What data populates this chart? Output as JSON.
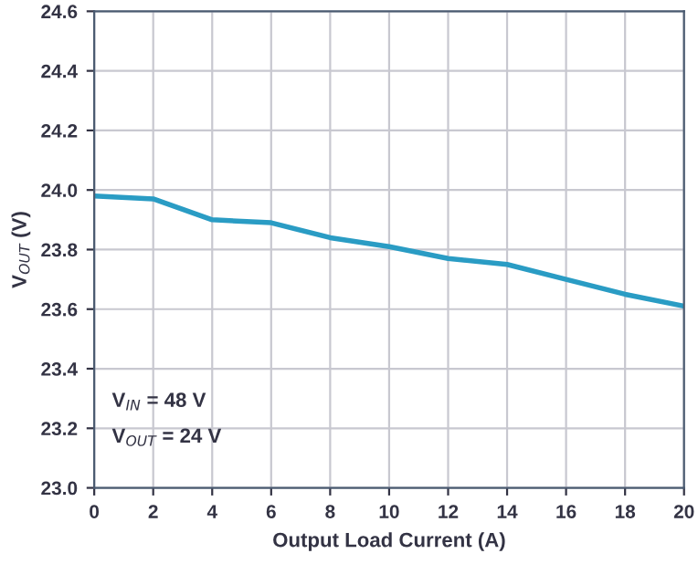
{
  "chart_data": {
    "type": "line",
    "xlabel": "Output Load Current (A)",
    "ylabel": "V$_{OUT}$ (V)",
    "x": [
      0,
      2,
      4,
      6,
      8,
      10,
      12,
      14,
      16,
      18,
      20
    ],
    "series": [
      {
        "color": "#2a9cc4",
        "values": [
          23.98,
          23.97,
          23.9,
          23.89,
          23.84,
          23.81,
          23.77,
          23.75,
          23.7,
          23.65,
          23.61
        ]
      }
    ],
    "xlim": [
      0,
      20
    ],
    "xticks": [
      0,
      2,
      4,
      6,
      8,
      10,
      12,
      14,
      16,
      18,
      20
    ],
    "ylim": [
      23.0,
      24.6
    ],
    "yticks": [
      {
        "value": 23.0,
        "label": "23.0"
      },
      23.2,
      23.4,
      23.6,
      23.8,
      {
        "value": 24.0,
        "label": "24.0"
      },
      24.2,
      24.4,
      24.6
    ],
    "grid": true,
    "marker": "none",
    "line_style": "solid",
    "annotations": [
      "V$_{IN}$ = 48 V",
      "V$_{OUT}$ = 24 V"
    ]
  }
}
